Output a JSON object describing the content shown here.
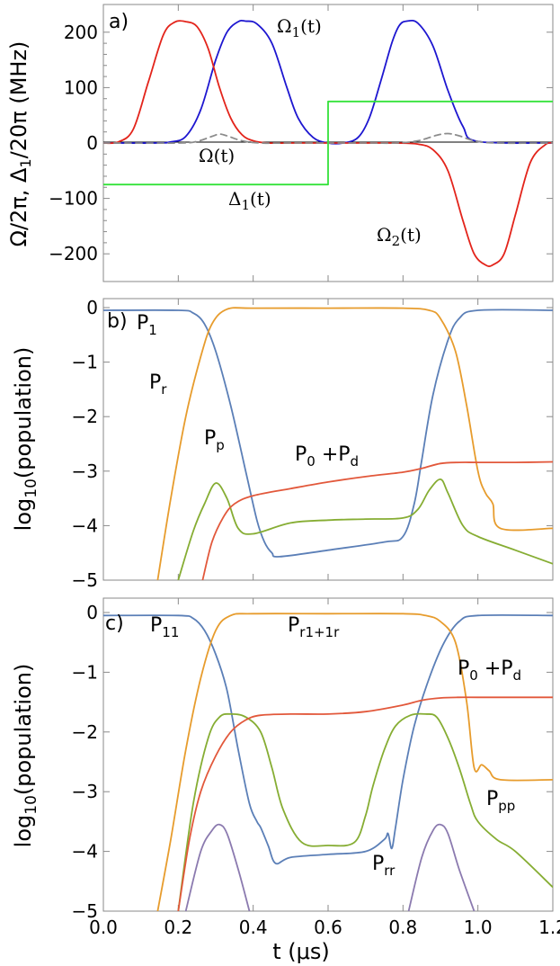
{
  "colors": {
    "red": "#e3241b",
    "blue": "#1d16d0",
    "green": "#34e23a",
    "gray_dashed": "#8c8c8c",
    "p_blue": "#5b7fb7",
    "p_orange": "#e79c2d",
    "p_red": "#e2583b",
    "p_green": "#86ad33",
    "p_purple": "#8b7aaf"
  },
  "xaxis": {
    "label": "t (μs)",
    "ticks": [
      "0.0",
      "0.2",
      "0.4",
      "0.6",
      "0.8",
      "1.0",
      "1.2"
    ]
  },
  "chart_data": [
    {
      "type": "line",
      "panel_label": "a)",
      "ylabel": "Ω/2π, Δ₁/20π (MHz)",
      "xlim": [
        0,
        1.2
      ],
      "ylim": [
        -250,
        250
      ],
      "yticks": [
        "200",
        "100",
        "0",
        "−100",
        "−200"
      ],
      "series": [
        {
          "name": "Ω₁(t)",
          "color_key": "blue",
          "x": [
            0,
            0.14,
            0.18,
            0.22,
            0.26,
            0.3,
            0.33,
            0.36,
            0.38,
            0.41,
            0.45,
            0.49,
            0.52,
            0.56,
            0.6,
            0.64,
            0.68,
            0.71,
            0.74,
            0.77,
            0.79,
            0.81,
            0.84,
            0.88,
            0.92,
            0.96,
            1.0,
            1.2
          ],
          "y": [
            0,
            0,
            2,
            12,
            60,
            150,
            200,
            219,
            220,
            215,
            180,
            100,
            45,
            10,
            0,
            0,
            10,
            45,
            110,
            180,
            212,
            220,
            216,
            175,
            95,
            30,
            3,
            0
          ]
        },
        {
          "name": "Ω₂(t)",
          "color_key": "red",
          "x": [
            0,
            0.04,
            0.08,
            0.12,
            0.16,
            0.19,
            0.22,
            0.25,
            0.28,
            0.31,
            0.34,
            0.37,
            0.4,
            0.44,
            0.5,
            0.6,
            0.7,
            0.78,
            0.84,
            0.88,
            0.92,
            0.96,
            0.99,
            1.02,
            1.04,
            1.07,
            1.1,
            1.14,
            1.18,
            1.2
          ],
          "y": [
            0,
            2,
            25,
            110,
            195,
            218,
            219,
            210,
            170,
            100,
            45,
            15,
            4,
            0,
            0,
            0,
            0,
            0,
            -2,
            -12,
            -50,
            -140,
            -200,
            -220,
            -220,
            -200,
            -130,
            -35,
            -3,
            0
          ]
        },
        {
          "name": "Ω(t)",
          "color_key": "gray_dashed",
          "dashed": true,
          "x": [
            0,
            0.2,
            0.25,
            0.29,
            0.31,
            0.33,
            0.37,
            0.42,
            0.5,
            0.6,
            0.7,
            0.78,
            0.84,
            0.89,
            0.92,
            0.95,
            0.99,
            1.05,
            1.2
          ],
          "y": [
            0,
            0,
            3,
            12,
            16,
            13,
            4,
            0,
            0,
            0,
            0,
            0,
            4,
            14,
            17,
            13,
            4,
            0,
            0
          ]
        },
        {
          "name": "Δ₁(t)",
          "color_key": "green",
          "x": [
            0,
            0.6,
            0.6,
            1.2
          ],
          "y": [
            -75,
            -75,
            75,
            75
          ]
        }
      ],
      "annotations": [
        "Ω₁(t)",
        "Ω(t)",
        "Δ₁(t)",
        "Ω₂(t)"
      ]
    },
    {
      "type": "line",
      "panel_label": "b)",
      "ylabel": "log₁₀(population)",
      "xlim": [
        0,
        1.2
      ],
      "ylim": [
        -5,
        0
      ],
      "yticks": [
        "0",
        "−1",
        "−2",
        "−3",
        "−4",
        "−5"
      ],
      "series": [
        {
          "name": "P₁",
          "color_key": "p_blue",
          "x": [
            0,
            0.2,
            0.24,
            0.27,
            0.3,
            0.34,
            0.38,
            0.41,
            0.43,
            0.45,
            0.47,
            0.6,
            0.75,
            0.8,
            0.83,
            0.85,
            0.88,
            0.92,
            0.95,
            1.0,
            1.2
          ],
          "y": [
            -0.05,
            -0.05,
            -0.1,
            -0.3,
            -0.8,
            -1.8,
            -3.0,
            -3.9,
            -4.3,
            -4.5,
            -4.57,
            -4.45,
            -4.3,
            -4.2,
            -3.6,
            -2.8,
            -1.6,
            -0.6,
            -0.2,
            -0.05,
            -0.05
          ]
        },
        {
          "name": "P_r",
          "color_key": "p_orange",
          "x": [
            0.145,
            0.18,
            0.22,
            0.26,
            0.29,
            0.33,
            0.4,
            0.6,
            0.8,
            0.87,
            0.9,
            0.94,
            0.97,
            1.0,
            1.02,
            1.04,
            1.06,
            1.2
          ],
          "y": [
            -5,
            -3.5,
            -2.0,
            -0.9,
            -0.3,
            -0.03,
            -0.01,
            -0.01,
            -0.01,
            -0.05,
            -0.2,
            -0.8,
            -1.8,
            -3.0,
            -3.4,
            -3.6,
            -4.05,
            -4.05
          ]
        },
        {
          "name": "P_p",
          "color_key": "p_green",
          "x": [
            0.2,
            0.24,
            0.27,
            0.3,
            0.33,
            0.36,
            0.4,
            0.5,
            0.6,
            0.7,
            0.8,
            0.84,
            0.87,
            0.9,
            0.92,
            0.96,
            1.0,
            1.1,
            1.2
          ],
          "y": [
            -5,
            -4.1,
            -3.6,
            -3.22,
            -3.5,
            -4.05,
            -4.15,
            -3.95,
            -3.9,
            -3.88,
            -3.86,
            -3.7,
            -3.35,
            -3.15,
            -3.4,
            -4.0,
            -4.2,
            -4.45,
            -4.7
          ]
        },
        {
          "name": "P₀+P_d",
          "color_key": "p_red",
          "x": [
            0.265,
            0.29,
            0.32,
            0.35,
            0.4,
            0.5,
            0.6,
            0.7,
            0.8,
            0.85,
            0.9,
            0.95,
            1.0,
            1.1,
            1.2
          ],
          "y": [
            -5,
            -4.3,
            -3.85,
            -3.6,
            -3.45,
            -3.32,
            -3.2,
            -3.1,
            -3.02,
            -2.95,
            -2.86,
            -2.84,
            -2.84,
            -2.84,
            -2.83
          ]
        }
      ],
      "annotations": [
        "P₁",
        "P_r",
        "P_p",
        "P₀+P_d"
      ]
    },
    {
      "type": "line",
      "panel_label": "c)",
      "ylabel": "log₁₀(population)",
      "xlim": [
        0,
        1.2
      ],
      "ylim": [
        -5,
        0
      ],
      "yticks": [
        "0",
        "−1",
        "−2",
        "−3",
        "−4",
        "−5"
      ],
      "series": [
        {
          "name": "P₁₁",
          "color_key": "p_blue",
          "x": [
            0,
            0.2,
            0.24,
            0.27,
            0.3,
            0.33,
            0.36,
            0.39,
            0.41,
            0.42,
            0.44,
            0.46,
            0.5,
            0.6,
            0.7,
            0.75,
            0.76,
            0.77,
            0.78,
            0.8,
            0.83,
            0.87,
            0.91,
            0.95,
            1.0,
            1.2
          ],
          "y": [
            -0.05,
            -0.05,
            -0.1,
            -0.3,
            -0.7,
            -1.3,
            -2.3,
            -3.2,
            -3.5,
            -3.6,
            -3.9,
            -4.2,
            -4.1,
            -4.05,
            -4.0,
            -3.8,
            -3.7,
            -3.95,
            -3.6,
            -2.8,
            -1.9,
            -1.1,
            -0.5,
            -0.15,
            -0.05,
            -0.05
          ]
        },
        {
          "name": "P_r1+1r",
          "color_key": "p_orange",
          "x": [
            0.145,
            0.18,
            0.22,
            0.26,
            0.3,
            0.34,
            0.4,
            0.6,
            0.8,
            0.86,
            0.9,
            0.94,
            0.97,
            0.99,
            1.01,
            1.03,
            1.06,
            1.2
          ],
          "y": [
            -5,
            -3.8,
            -2.3,
            -1.1,
            -0.3,
            -0.05,
            -0.02,
            -0.02,
            -0.02,
            -0.05,
            -0.15,
            -0.5,
            -1.5,
            -2.6,
            -2.55,
            -2.65,
            -2.8,
            -2.8
          ]
        },
        {
          "name": "P_pp",
          "color_key": "p_green",
          "x": [
            0.2,
            0.24,
            0.28,
            0.31,
            0.34,
            0.38,
            0.42,
            0.45,
            0.48,
            0.53,
            0.6,
            0.67,
            0.7,
            0.72,
            0.75,
            0.78,
            0.82,
            0.86,
            0.89,
            0.92,
            0.95,
            0.98,
            1.0,
            1.05,
            1.1,
            1.2
          ],
          "y": [
            -5,
            -3.2,
            -2.1,
            -1.75,
            -1.7,
            -1.75,
            -2.0,
            -2.6,
            -3.3,
            -3.85,
            -3.9,
            -3.85,
            -3.4,
            -2.9,
            -2.3,
            -1.9,
            -1.72,
            -1.7,
            -1.75,
            -2.1,
            -2.6,
            -3.2,
            -3.5,
            -3.8,
            -4.0,
            -4.6
          ]
        },
        {
          "name": "P₀+P_d",
          "color_key": "p_red",
          "x": [
            0.2,
            0.23,
            0.26,
            0.3,
            0.34,
            0.38,
            0.42,
            0.5,
            0.6,
            0.7,
            0.8,
            0.85,
            0.9,
            0.95,
            1.0,
            1.2
          ],
          "y": [
            -5,
            -3.8,
            -3.0,
            -2.4,
            -2.0,
            -1.8,
            -1.72,
            -1.7,
            -1.7,
            -1.66,
            -1.55,
            -1.47,
            -1.43,
            -1.42,
            -1.42,
            -1.42
          ]
        },
        {
          "name": "P_rr",
          "color_key": "p_purple",
          "x": [
            0.22,
            0.26,
            0.29,
            0.31,
            0.33,
            0.36,
            0.39
          ],
          "y": [
            -5,
            -4.0,
            -3.65,
            -3.55,
            -3.7,
            -4.3,
            -5
          ]
        },
        {
          "name": "P_rr (2nd)",
          "color_key": "p_purple",
          "x": [
            0.815,
            0.85,
            0.88,
            0.9,
            0.92,
            0.95,
            0.99
          ],
          "y": [
            -5,
            -4.1,
            -3.65,
            -3.55,
            -3.7,
            -4.3,
            -5
          ]
        }
      ],
      "annotations": [
        "P₁₁",
        "P_r1+1r",
        "P₀+P_d",
        "P_pp",
        "P_rr"
      ]
    }
  ]
}
